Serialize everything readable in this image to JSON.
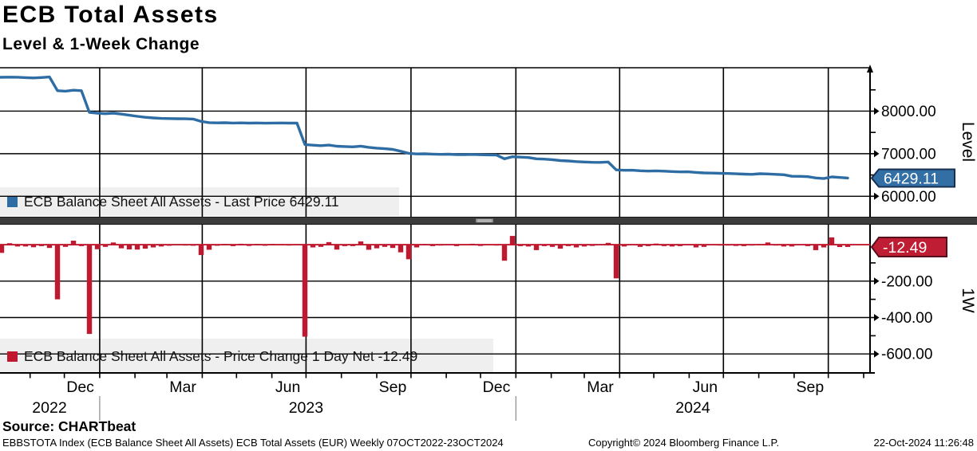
{
  "header": {
    "title": "ECB Total Assets",
    "subtitle": "Level & 1-Week Change"
  },
  "colors": {
    "line_blue": "#2e6da4",
    "badge_blue": "#336fa5",
    "badge_blue_border": "#16304f",
    "bar_red": "#c0182f",
    "badge_red": "#bf1d33",
    "badge_red_border": "#55101e",
    "grid": "#000000",
    "legend_bg": "#efefef",
    "separator": "#3c3c3c"
  },
  "panels": {
    "level": {
      "axis_label": "Level",
      "badge": "6429.11",
      "legend_label": "ECB Balance Sheet All Assets - Last Price 6429.11",
      "major_ticks": [
        {
          "v": 8000,
          "label": "8000.00"
        },
        {
          "v": 7000,
          "label": "7000.00"
        },
        {
          "v": 6000,
          "label": "6000.00"
        }
      ],
      "minor_ticks": [
        8500,
        7500,
        6500,
        5500
      ],
      "badge_value": 6429.11
    },
    "change": {
      "axis_label": "1W",
      "badge": "-12.49",
      "legend_label": "ECB Balance Sheet All Assets -  Price Change 1 Day Net -12.49",
      "major_ticks": [
        {
          "v": -200,
          "label": "-200.00"
        },
        {
          "v": -400,
          "label": "-400.00"
        },
        {
          "v": -600,
          "label": "-600.00"
        }
      ],
      "minor_ticks": [
        -100,
        -300,
        -500
      ],
      "badge_value": -12.49
    }
  },
  "x_axis": {
    "month_labels": [
      {
        "label": "Dec",
        "week": 9.86
      },
      {
        "label": "Mar",
        "week": 22.71
      },
      {
        "label": "Jun",
        "week": 35.86
      },
      {
        "label": "Sep",
        "week": 49.0
      },
      {
        "label": "Dec",
        "week": 62.0
      },
      {
        "label": "Mar",
        "week": 75.0
      },
      {
        "label": "Jun",
        "week": 88.14
      },
      {
        "label": "Sep",
        "week": 101.29
      }
    ],
    "year_labels": [
      {
        "label": "2022",
        "week": 6.0
      },
      {
        "label": "2023",
        "week": 38.14
      },
      {
        "label": "2024",
        "week": 86.6
      }
    ],
    "year_divider_weeks": [
      12.29,
      64.43
    ],
    "quarter_grid_weeks": [
      12.29,
      25.14,
      38.14,
      51.29,
      64.43,
      77.43,
      90.43,
      103.57
    ],
    "month_tick_weeks": [
      3.57,
      7.86,
      12.29,
      16.71,
      20.71,
      25.14,
      29.43,
      33.86,
      38.14,
      42.57,
      47.0,
      51.29,
      55.71,
      60.0,
      64.43,
      68.86,
      73.0,
      77.43,
      81.71,
      86.14,
      90.43,
      94.86,
      99.29,
      103.57,
      108.0
    ]
  },
  "footer": {
    "source": "Source: CHARTbeat",
    "left": "EBBSTOTA Index (ECB Balance Sheet All Assets) ECB Total Assets (EUR)  Weekly 07OCT2022-23OCT2024",
    "center": "Copyright© 2024 Bloomberg Finance L.P.",
    "right": "22-Oct-2024 11:26:48"
  },
  "chart_data": [
    {
      "type": "line",
      "name": "ECB Balance Sheet All Assets - Last Price",
      "x_start": "07OCT2022",
      "x_end": "23OCT2024",
      "frequency": "Weekly",
      "last_price": 6429.11,
      "ylabel": "Level",
      "ylim": [
        5500,
        9020
      ],
      "yticks": [
        6000,
        7000,
        8000
      ],
      "grid": true,
      "legend_position": "bottom-left",
      "values": [
        8795,
        8800,
        8798,
        8788,
        8780,
        8790,
        8802,
        8480,
        8470,
        8492,
        8480,
        7970,
        7950,
        7940,
        7952,
        7930,
        7905,
        7878,
        7855,
        7840,
        7830,
        7825,
        7822,
        7820,
        7815,
        7758,
        7730,
        7725,
        7728,
        7720,
        7725,
        7718,
        7722,
        7716,
        7720,
        7722,
        7718,
        7720,
        7215,
        7200,
        7188,
        7202,
        7175,
        7168,
        7160,
        7178,
        7150,
        7130,
        7118,
        7100,
        7058,
        7010,
        6995,
        6998,
        6990,
        6985,
        6988,
        6980,
        6978,
        6982,
        6975,
        6972,
        6968,
        6880,
        6928,
        6920,
        6910,
        6880,
        6872,
        6860,
        6838,
        6830,
        6815,
        6805,
        6798,
        6795,
        6805,
        6620,
        6610,
        6612,
        6600,
        6592,
        6598,
        6590,
        6580,
        6572,
        6575,
        6560,
        6548,
        6545,
        6540,
        6535,
        6528,
        6520,
        6515,
        6530,
        6525,
        6515,
        6505,
        6470,
        6468,
        6460,
        6430,
        6415,
        6455,
        6442,
        6429.11
      ]
    },
    {
      "type": "bar",
      "name": "ECB Balance Sheet All Assets - Price Change 1 Day Net",
      "x_start": "07OCT2022",
      "x_end": "23OCT2024",
      "frequency": "Weekly",
      "last_change": -12.49,
      "ylabel": "1W",
      "ylim": [
        -704,
        114
      ],
      "yticks": [
        -600,
        -400,
        -200
      ],
      "grid": true,
      "legend_position": "bottom-left",
      "values": [
        -45,
        8,
        -10,
        -10,
        -14,
        -8,
        -18,
        -300,
        -12,
        22,
        -8,
        -490,
        -25,
        -12,
        12,
        -20,
        -26,
        -27,
        -22,
        -15,
        -10,
        -6,
        -4,
        -5,
        -6,
        -57,
        -28,
        -6,
        4,
        -8,
        5,
        -7,
        4,
        -6,
        4,
        3,
        -5,
        3,
        -505,
        -15,
        -12,
        14,
        -27,
        -8,
        -8,
        18,
        -28,
        -20,
        -12,
        -18,
        -42,
        -80,
        -15,
        4,
        -8,
        -5,
        3,
        -8,
        -3,
        5,
        -7,
        -3,
        -5,
        -88,
        48,
        -8,
        -10,
        -30,
        -8,
        -12,
        -22,
        -8,
        -15,
        -10,
        -7,
        -3,
        10,
        -185,
        -10,
        3,
        -12,
        -8,
        6,
        -8,
        -10,
        -8,
        3,
        -15,
        -12,
        -3,
        -5,
        -5,
        -7,
        -8,
        -5,
        3,
        12,
        -5,
        -10,
        -10,
        -3,
        -8,
        -30,
        -15,
        40,
        -13,
        -12.49
      ]
    }
  ]
}
